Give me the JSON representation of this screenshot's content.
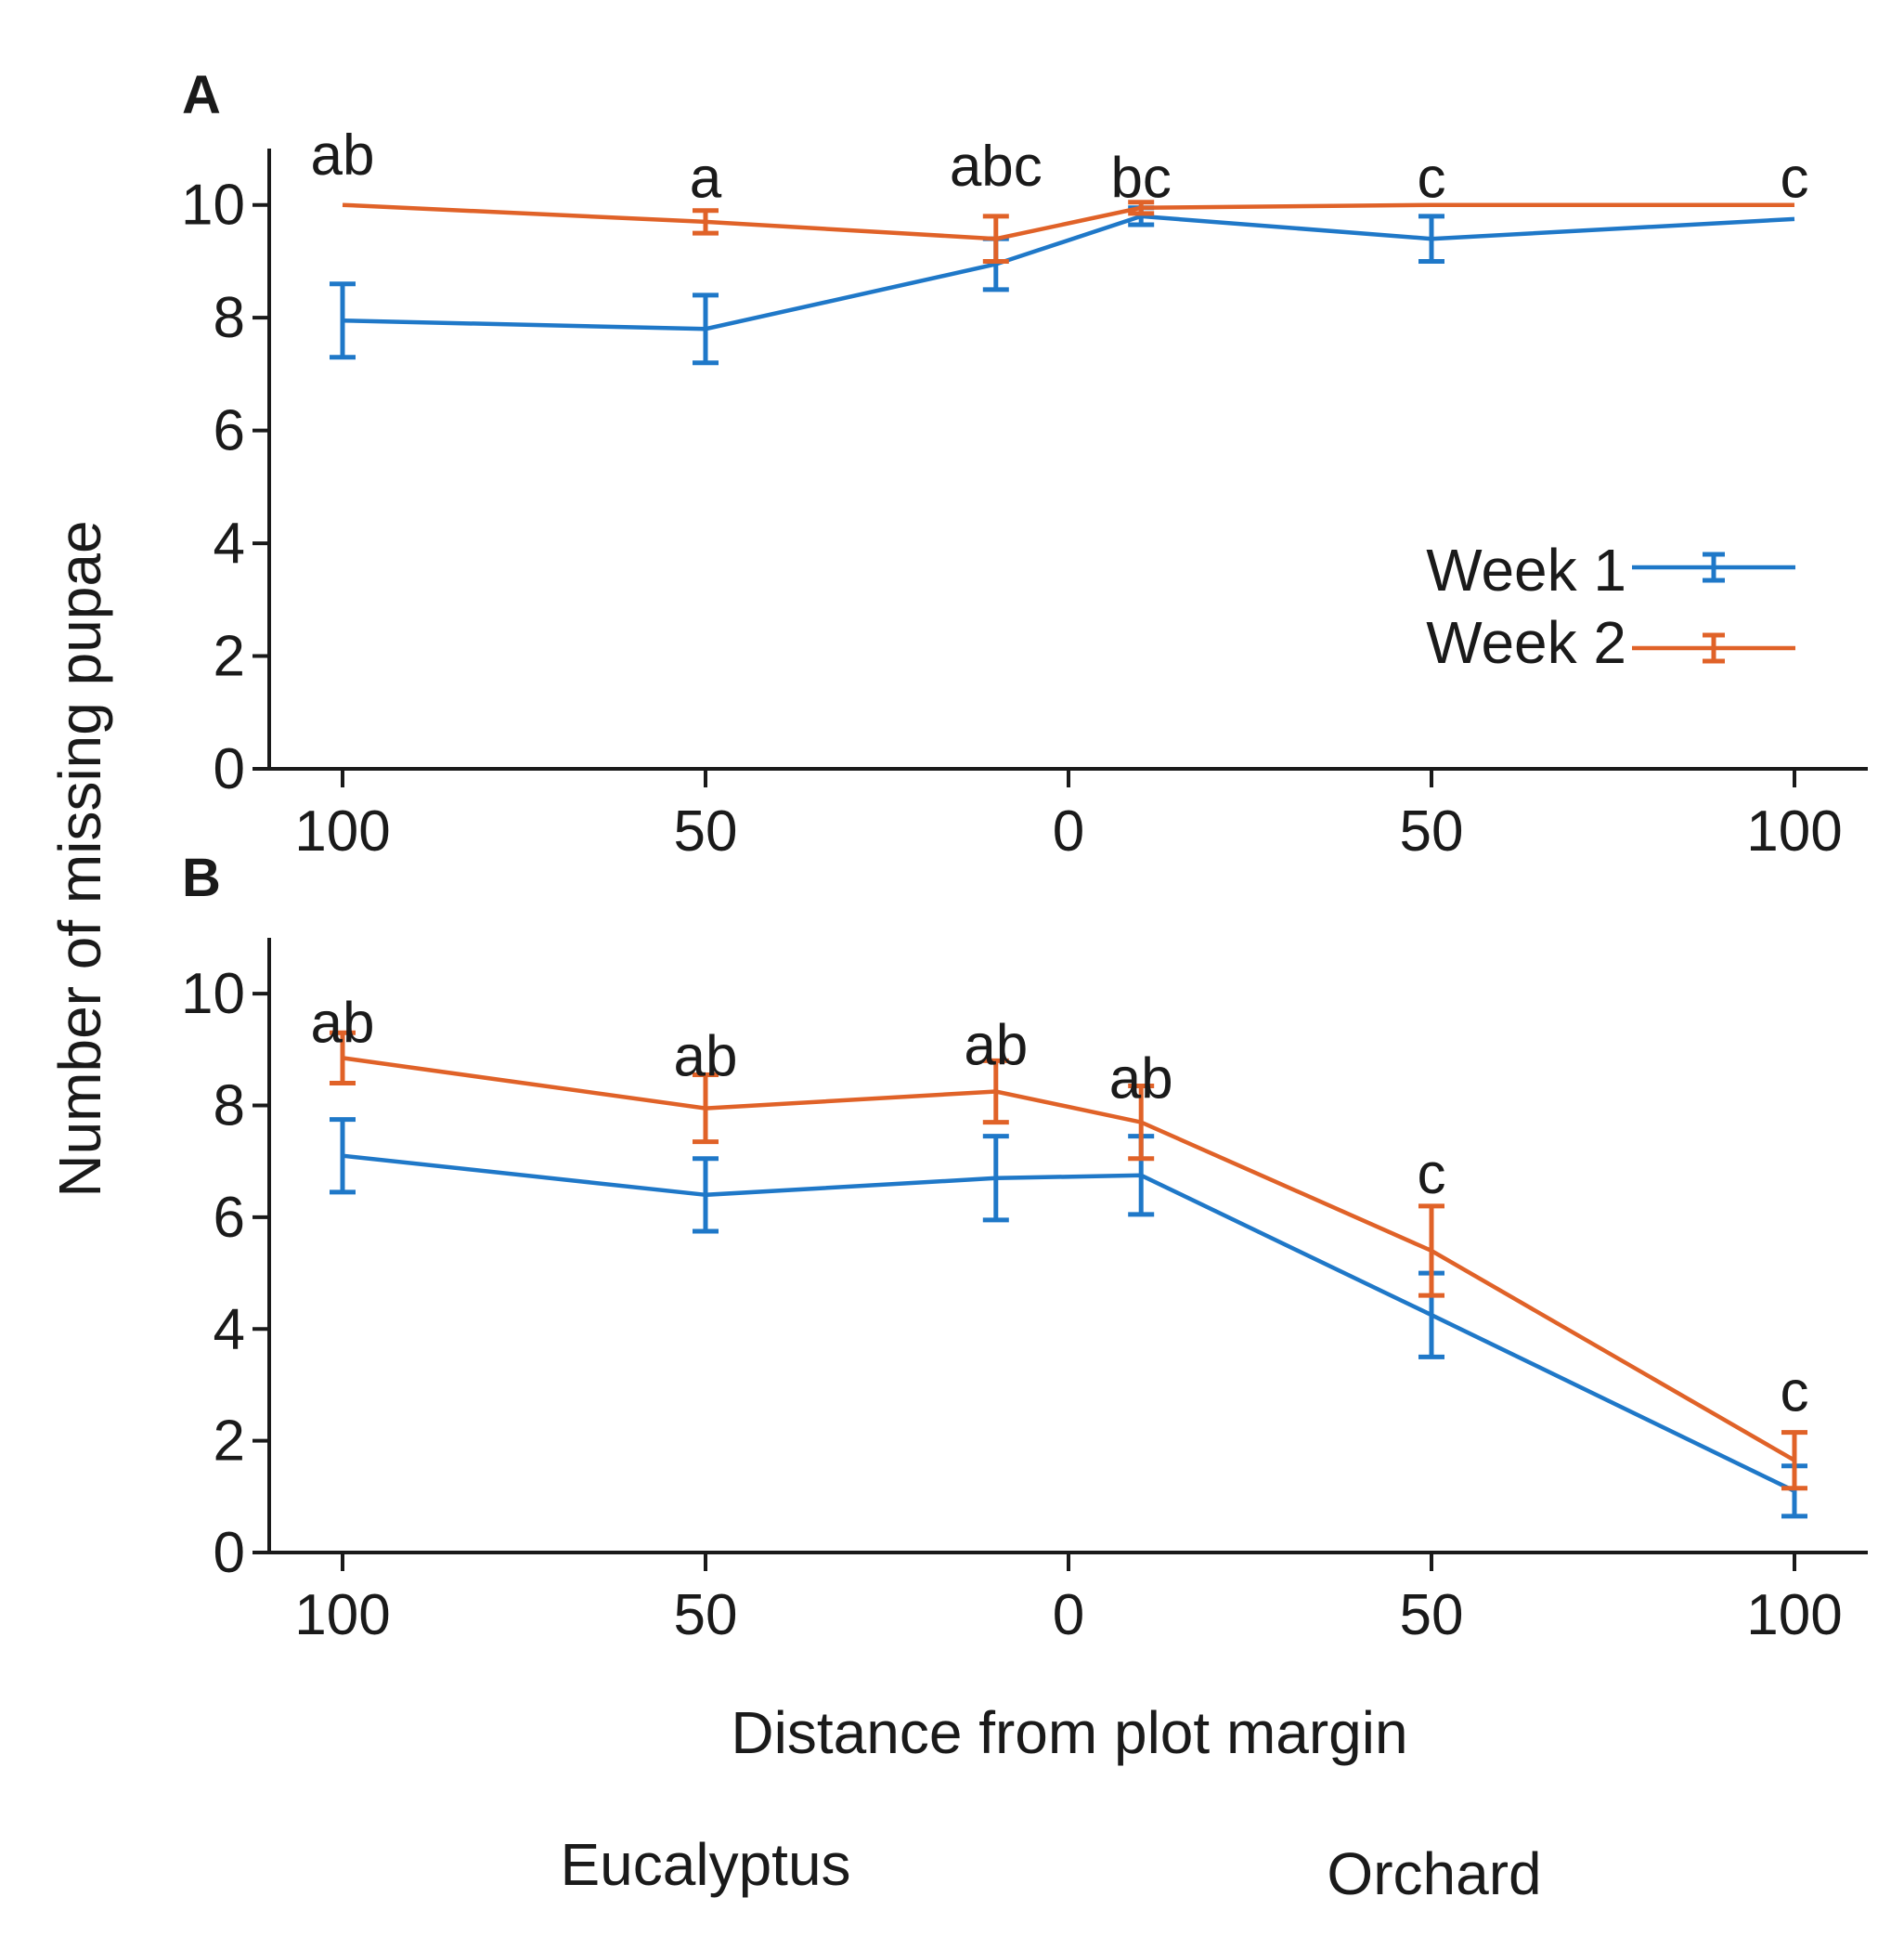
{
  "ylabel": "Number of missing pupae",
  "xlabel": "Distance from plot margin",
  "region_labels": {
    "left": "Eucalyptus",
    "right": "Orchard"
  },
  "colors": {
    "week1": "#1f78c8",
    "week2": "#e06228",
    "axis": "#1a1a1a"
  },
  "legend": [
    {
      "name": "Week 1",
      "color_key": "week1"
    },
    {
      "name": "Week 2",
      "color_key": "week2"
    }
  ],
  "chart_data": [
    {
      "panel": "A",
      "type": "line",
      "x": [
        -100,
        -50,
        -10,
        10,
        50,
        100
      ],
      "xtick_values": [
        -100,
        -50,
        0,
        50,
        100
      ],
      "xtick_labels": [
        "100",
        "50",
        "0",
        "50",
        "100"
      ],
      "xlim": [
        -110,
        110
      ],
      "ylim": [
        0,
        11
      ],
      "ytick_values": [
        0,
        2,
        4,
        6,
        8,
        10
      ],
      "ytick_labels": [
        "0",
        "2",
        "4",
        "6",
        "8",
        "10"
      ],
      "series": [
        {
          "name": "Week 1",
          "color_key": "week1",
          "values": [
            7.95,
            7.8,
            8.95,
            9.8,
            9.4,
            9.75
          ],
          "errors": [
            0.65,
            0.6,
            0.45,
            0.15,
            0.4,
            0.0
          ]
        },
        {
          "name": "Week 2",
          "color_key": "week2",
          "values": [
            10.0,
            9.7,
            9.4,
            9.95,
            10.0,
            10.0
          ],
          "errors": [
            0.0,
            0.2,
            0.4,
            0.1,
            0.0,
            0.0
          ]
        }
      ],
      "annotations": [
        {
          "x": -100,
          "text": "ab",
          "y": 10.9
        },
        {
          "x": -50,
          "text": "a",
          "y": 10.5
        },
        {
          "x": -10,
          "text": "abc",
          "y": 10.7
        },
        {
          "x": 10,
          "text": "bc",
          "y": 10.5
        },
        {
          "x": 50,
          "text": "c",
          "y": 10.5
        },
        {
          "x": 100,
          "text": "c",
          "y": 10.5
        }
      ]
    },
    {
      "panel": "B",
      "type": "line",
      "x": [
        -100,
        -50,
        -10,
        10,
        50,
        100
      ],
      "xtick_values": [
        -100,
        -50,
        0,
        50,
        100
      ],
      "xtick_labels": [
        "100",
        "50",
        "0",
        "50",
        "100"
      ],
      "xlim": [
        -110,
        110
      ],
      "ylim": [
        0,
        11
      ],
      "ytick_values": [
        0,
        2,
        4,
        6,
        8,
        10
      ],
      "ytick_labels": [
        "0",
        "2",
        "4",
        "6",
        "8",
        "10"
      ],
      "series": [
        {
          "name": "Week 1",
          "color_key": "week1",
          "values": [
            7.1,
            6.4,
            6.7,
            6.75,
            4.25,
            1.1
          ],
          "errors": [
            0.65,
            0.65,
            0.75,
            0.7,
            0.75,
            0.45
          ]
        },
        {
          "name": "Week 2",
          "color_key": "week2",
          "values": [
            8.85,
            7.95,
            8.25,
            7.7,
            5.4,
            1.65
          ],
          "errors": [
            0.45,
            0.6,
            0.55,
            0.65,
            0.8,
            0.5
          ]
        }
      ],
      "annotations": [
        {
          "x": -100,
          "text": "ab",
          "y": 9.5
        },
        {
          "x": -50,
          "text": "ab",
          "y": 8.9
        },
        {
          "x": -10,
          "text": "ab",
          "y": 9.1
        },
        {
          "x": 10,
          "text": "ab",
          "y": 8.5
        },
        {
          "x": 50,
          "text": "c",
          "y": 6.8
        },
        {
          "x": 100,
          "text": "c",
          "y": 2.9
        }
      ]
    }
  ]
}
